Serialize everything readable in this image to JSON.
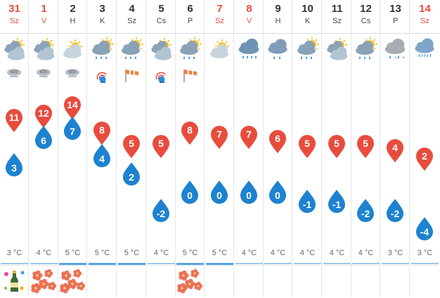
{
  "forecast": {
    "days": [
      {
        "num": "31",
        "name": "Sz",
        "weekend": true,
        "icon": "cloudy-sun-icon",
        "extra": "fog-icon",
        "high": "11",
        "low": "3",
        "temp": "3 °C",
        "event": "champagne-icon"
      },
      {
        "num": "1",
        "name": "V",
        "weekend": true,
        "icon": "cloudy-sun-icon",
        "extra": "fog-icon",
        "high": "12",
        "low": "6",
        "temp": "4 °C",
        "event": "flower-icon"
      },
      {
        "num": "2",
        "name": "H",
        "weekend": false,
        "icon": "partly-cloudy-icon",
        "extra": "fog-icon",
        "high": "14",
        "low": "7",
        "temp": "5 °C",
        "event": "flower-icon"
      },
      {
        "num": "3",
        "name": "K",
        "weekend": false,
        "icon": "sun-shower-icon",
        "extra": "alert-wind-icon",
        "high": "8",
        "low": "4",
        "temp": "5 °C",
        "event": ""
      },
      {
        "num": "4",
        "name": "Sz",
        "weekend": false,
        "icon": "sun-shower-icon",
        "extra": "windsock-icon",
        "high": "5",
        "low": "2",
        "temp": "5 °C",
        "event": ""
      },
      {
        "num": "5",
        "name": "Cs",
        "weekend": false,
        "icon": "cloudy-sun-icon",
        "extra": "alert-wind-icon",
        "high": "5",
        "low": "-2",
        "temp": "4 °C",
        "event": ""
      },
      {
        "num": "6",
        "name": "P",
        "weekend": false,
        "icon": "sun-shower-icon",
        "extra": "windsock-icon",
        "high": "8",
        "low": "0",
        "temp": "5 °C",
        "event": "flower-icon"
      },
      {
        "num": "7",
        "name": "Sz",
        "weekend": true,
        "icon": "partly-cloudy-icon",
        "extra": "",
        "high": "7",
        "low": "0",
        "temp": "5 °C",
        "event": ""
      },
      {
        "num": "8",
        "name": "V",
        "weekend": true,
        "icon": "rain-icon",
        "extra": "",
        "high": "7",
        "low": "0",
        "temp": "4 °C",
        "event": ""
      },
      {
        "num": "9",
        "name": "H",
        "weekend": false,
        "icon": "light-rain-icon",
        "extra": "",
        "high": "6",
        "low": "0",
        "temp": "4 °C",
        "event": ""
      },
      {
        "num": "10",
        "name": "K",
        "weekend": false,
        "icon": "sun-shower-icon",
        "extra": "",
        "high": "5",
        "low": "-1",
        "temp": "4 °C",
        "event": ""
      },
      {
        "num": "11",
        "name": "Sz",
        "weekend": false,
        "icon": "cloudy-sun-icon",
        "extra": "",
        "high": "5",
        "low": "-1",
        "temp": "4 °C",
        "event": ""
      },
      {
        "num": "12",
        "name": "Cs",
        "weekend": false,
        "icon": "sun-shower-icon",
        "extra": "",
        "high": "5",
        "low": "-2",
        "temp": "4 °C",
        "event": ""
      },
      {
        "num": "13",
        "name": "P",
        "weekend": false,
        "icon": "sleet-icon",
        "extra": "",
        "high": "4",
        "low": "-2",
        "temp": "3 °C",
        "event": ""
      },
      {
        "num": "14",
        "name": "Sz",
        "weekend": true,
        "icon": "drizzle-icon",
        "extra": "",
        "high": "2",
        "low": "-4",
        "temp": "3 °C",
        "event": ""
      }
    ]
  },
  "colors": {
    "high": "#e84c3d",
    "low": "#1d82cf",
    "weekend": "#e84c3d",
    "text": "#333333"
  }
}
